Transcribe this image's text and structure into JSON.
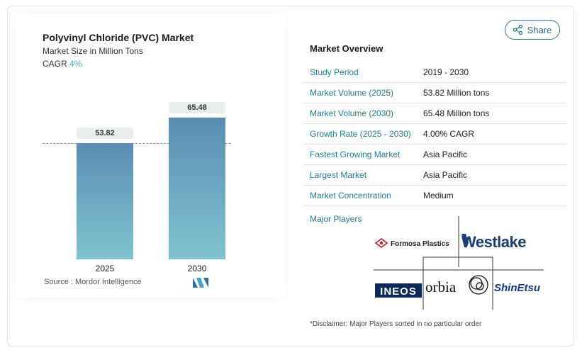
{
  "chart_card": {
    "title": "Polyvinyl Chloride (PVC) Market",
    "subtitle": "Market Size in Million Tons",
    "cagr_label": "CAGR",
    "cagr_value": "4%",
    "source": "Source :  Mordor Intelligence"
  },
  "chart_data": {
    "type": "bar",
    "title": "Polyvinyl Chloride (PVC) Market",
    "ylabel": "Market Size in Million Tons",
    "categories": [
      "2025",
      "2030"
    ],
    "values": [
      53.82,
      65.48
    ],
    "data_labels": [
      "53.82",
      "65.48"
    ],
    "ylim": [
      0,
      70
    ],
    "reference_line": "dashed line at 2025 value"
  },
  "share": {
    "label": "Share",
    "icon": "share-icon"
  },
  "overview": {
    "title": "Market Overview",
    "rows": [
      {
        "key": "Study Period",
        "value": "2019 - 2030"
      },
      {
        "key": "Market Volume (2025)",
        "value": "53.82 Million tons"
      },
      {
        "key": "Market Volume (2030)",
        "value": "65.48 Million tons"
      },
      {
        "key": "Growth Rate (2025 - 2030)",
        "value": "4.00% CAGR"
      },
      {
        "key": "Fastest Growing Market",
        "value": "Asia Pacific"
      },
      {
        "key": "Largest Market",
        "value": "Asia Pacific"
      },
      {
        "key": "Market Concentration",
        "value": "Medium"
      }
    ]
  },
  "players": {
    "title": "Major Players",
    "logos": [
      "Formosa Plastics",
      "Westlake",
      "INEOS",
      "orbia",
      "ShinEtsu"
    ],
    "disclaimer": "*Disclaimer: Major Players sorted in no particular order"
  },
  "colors": {
    "accent": "#1d7d93",
    "bar_top": "#5a8db3",
    "bar_bottom": "#7fc3cf"
  }
}
